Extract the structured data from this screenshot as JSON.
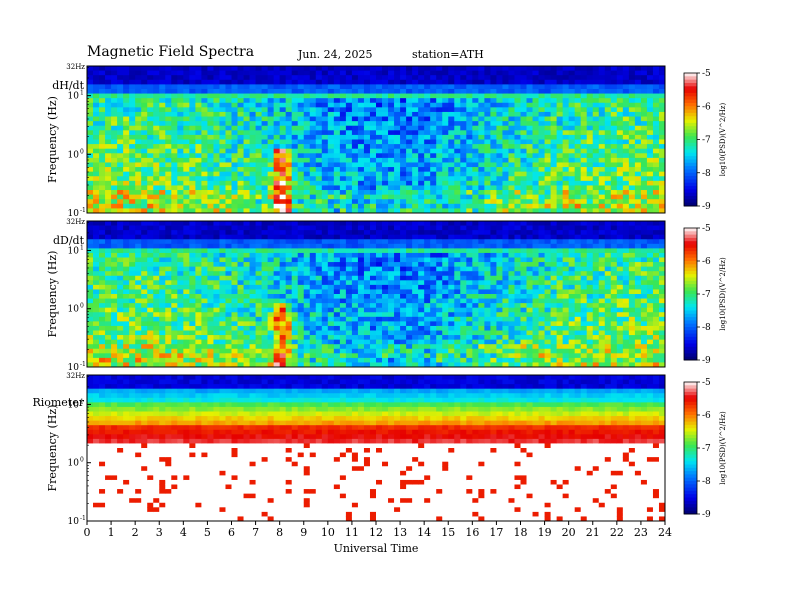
{
  "header": {
    "title": "Magnetic  Field  Spectra",
    "date": "Jun. 24, 2025",
    "station": "station=ATH"
  },
  "chart_data": [
    {
      "type": "heatmap",
      "panel_label": "dH/dt",
      "ylabel": "Frequency  (Hz)",
      "yscale": "log",
      "ylim": [
        0.1,
        32
      ],
      "y_ticks": [
        "32Hz",
        "10",
        "10",
        "10"
      ],
      "y_tick_exponents": [
        "",
        "1",
        "0",
        "-1"
      ],
      "x_range": [
        0,
        24
      ],
      "colorbar": {
        "label": "log10(PSD)(V^2/Hz)",
        "range": [
          -9,
          -5
        ],
        "ticks": [
          "-5",
          "-6",
          "-7",
          "-8",
          "-9"
        ]
      },
      "notes": "Broadband green/cyan below ~8 Hz at night, bluer 4–20 UT; dark blue band above ~10 Hz; strong red/yellow bursts near 8 UT below 1 Hz."
    },
    {
      "type": "heatmap",
      "panel_label": "dD/dt",
      "ylabel": "Frequency  (Hz)",
      "yscale": "log",
      "ylim": [
        0.1,
        32
      ],
      "y_ticks": [
        "32Hz",
        "10",
        "10",
        "10"
      ],
      "y_tick_exponents": [
        "",
        "1",
        "0",
        "-1"
      ],
      "x_range": [
        0,
        24
      ],
      "colorbar": {
        "label": "log10(PSD)(V^2/Hz)",
        "range": [
          -9,
          -5
        ],
        "ticks": [
          "-5",
          "-6",
          "-7",
          "-8",
          "-9"
        ]
      },
      "notes": "Similar to dH/dt; red bursts near 8 UT, dark blue above ~10 Hz."
    },
    {
      "type": "heatmap",
      "panel_label": "Riometer",
      "ylabel": "Frequency  (Hz)",
      "yscale": "log",
      "ylim": [
        0.1,
        32
      ],
      "y_ticks": [
        "32Hz",
        "10",
        "10",
        "10"
      ],
      "y_tick_exponents": [
        "",
        "1",
        "0",
        "-1"
      ],
      "x_range": [
        0,
        24
      ],
      "colorbar": {
        "label": "log10(PSD)(V^2/Hz)",
        "range": [
          -9,
          -5
        ],
        "ticks": [
          "-5",
          "-6",
          "-7",
          "-8",
          "-9"
        ]
      },
      "notes": "Horizontal bands: dark blue at top, cyan/green ~10 Hz, yellow/red ~3 Hz, white/red speckle below 1 Hz."
    }
  ],
  "xaxis": {
    "label": "Universal Time",
    "ticks": [
      "0",
      "1",
      "2",
      "3",
      "4",
      "5",
      "6",
      "7",
      "8",
      "9",
      "10",
      "11",
      "12",
      "13",
      "14",
      "15",
      "16",
      "17",
      "18",
      "19",
      "20",
      "21",
      "22",
      "23",
      "24"
    ]
  }
}
